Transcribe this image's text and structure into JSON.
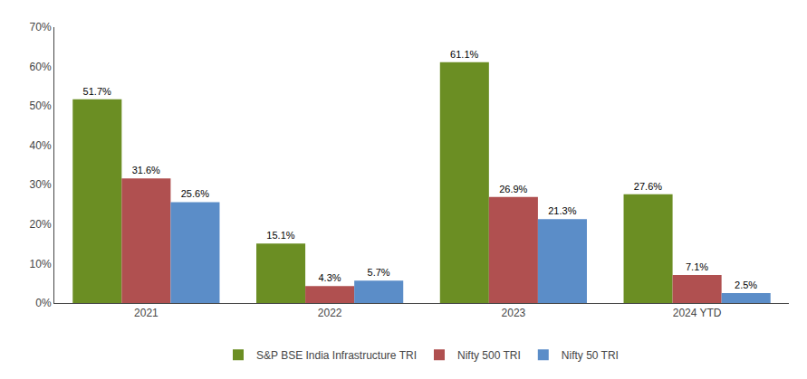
{
  "chart_data": {
    "type": "bar",
    "categories": [
      "2021",
      "2022",
      "2023",
      "2024 YTD"
    ],
    "series": [
      {
        "name": "S&P BSE India Infrastructure TRI",
        "color": "#6B8E23",
        "values": [
          51.7,
          15.1,
          61.1,
          27.6
        ],
        "value_labels": [
          "51.7%",
          "15.1%",
          "61.1%",
          "27.6%"
        ]
      },
      {
        "name": "Nifty 500 TRI",
        "color": "#B05050",
        "values": [
          31.6,
          4.3,
          26.9,
          7.1
        ],
        "value_labels": [
          "31.6%",
          "4.3%",
          "26.9%",
          "7.1%"
        ]
      },
      {
        "name": "Nifty 50 TRI",
        "color": "#5B8DC8",
        "values": [
          25.6,
          5.7,
          21.3,
          2.5
        ],
        "value_labels": [
          "25.6%",
          "5.7%",
          "21.3%",
          "2.5%"
        ]
      }
    ],
    "ylim": [
      0,
      70
    ],
    "yticks": [
      {
        "value": 0,
        "label": "0%"
      },
      {
        "value": 10,
        "label": "10%"
      },
      {
        "value": 20,
        "label": "20%"
      },
      {
        "value": 30,
        "label": "30%"
      },
      {
        "value": 40,
        "label": "40%"
      },
      {
        "value": 50,
        "label": "50%"
      },
      {
        "value": 60,
        "label": "60%"
      },
      {
        "value": 70,
        "label": "70%"
      }
    ],
    "grid": false,
    "legend": "bottom",
    "data_labels": true
  }
}
